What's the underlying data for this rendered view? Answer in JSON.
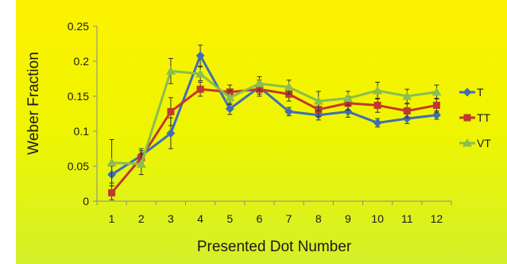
{
  "chart_data": {
    "type": "line",
    "title": "",
    "xlabel": "Presented Dot Number",
    "ylabel": "Weber Fraction",
    "categories": [
      1,
      2,
      3,
      4,
      5,
      6,
      7,
      8,
      9,
      10,
      11,
      12
    ],
    "ylim": [
      0,
      0.25
    ],
    "yticks": [
      0,
      0.05,
      0.1,
      0.15,
      0.2,
      0.25
    ],
    "ytick_labels": [
      "0",
      "0.05",
      "0.1",
      "0.15",
      "0.2",
      "0.25"
    ],
    "grid": false,
    "legend_position": "right",
    "series": [
      {
        "name": "T",
        "color": "#3f6fb3",
        "marker": "diamond",
        "values": [
          0.038,
          0.065,
          0.097,
          0.208,
          0.132,
          0.163,
          0.128,
          0.123,
          0.128,
          0.112,
          0.118,
          0.123
        ],
        "error": [
          0.012,
          0.01,
          0.022,
          0.015,
          0.008,
          0.01,
          0.006,
          0.007,
          0.008,
          0.006,
          0.007,
          0.006
        ]
      },
      {
        "name": "TT",
        "color": "#c0392b",
        "marker": "square",
        "values": [
          0.012,
          0.062,
          0.128,
          0.16,
          0.156,
          0.16,
          0.153,
          0.131,
          0.14,
          0.137,
          0.129,
          0.137
        ],
        "error": [
          0.01,
          0.01,
          0.02,
          0.01,
          0.01,
          0.01,
          0.01,
          0.01,
          0.01,
          0.01,
          0.01,
          0.01
        ]
      },
      {
        "name": "VT",
        "color": "#8bbd4f",
        "marker": "triangle",
        "values": [
          0.055,
          0.053,
          0.186,
          0.182,
          0.148,
          0.168,
          0.163,
          0.143,
          0.147,
          0.158,
          0.15,
          0.156
        ],
        "error": [
          0.033,
          0.015,
          0.018,
          0.01,
          0.01,
          0.01,
          0.01,
          0.014,
          0.01,
          0.012,
          0.01,
          0.01
        ]
      }
    ]
  }
}
